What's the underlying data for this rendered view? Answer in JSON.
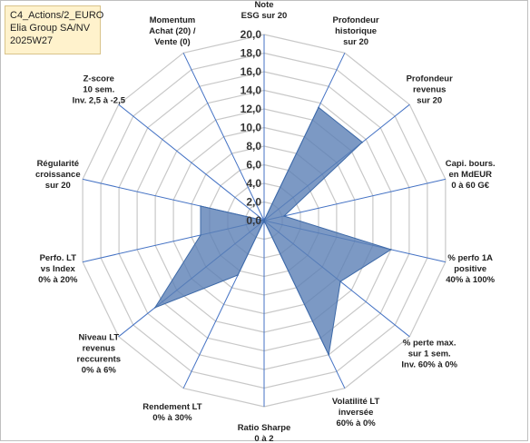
{
  "info": {
    "line1": "C4_Actions/2_EURO",
    "line2": "Elia Group SA/NV",
    "line3": "2025W27",
    "background": "#fff2cc"
  },
  "chart_data": {
    "type": "radar",
    "rlim": [
      0,
      20
    ],
    "ticks": [
      "0,0",
      "2,0",
      "4,0",
      "6,0",
      "8,0",
      "10,0",
      "12,0",
      "14,0",
      "16,0",
      "18,0",
      "20,0"
    ],
    "tick_values": [
      0,
      2,
      4,
      6,
      8,
      10,
      12,
      14,
      16,
      18,
      20
    ],
    "grid": true,
    "colors": {
      "fill": "#5b7fb5",
      "fill_opacity": 0.8,
      "stroke": "#3e6aa8",
      "grid": "#c8c8c8",
      "spoke": "#4472c4"
    },
    "axes": [
      {
        "label": [
          "Note",
          "ESG sur 20"
        ],
        "value": 0
      },
      {
        "label": [
          "Profondeur",
          "historique",
          "sur 20"
        ],
        "value": 13.5
      },
      {
        "label": [
          "Profondeur",
          "revenus",
          "sur 20"
        ],
        "value": 13.5
      },
      {
        "label": [
          "Capi. bours.",
          "en MdEUR",
          "0 à 60 G€"
        ],
        "value": 2.2
      },
      {
        "label": [
          "% perfo 1A",
          "positive",
          "40% à 100%"
        ],
        "value": 14
      },
      {
        "label": [
          "% perte max.",
          "sur 1 sem.",
          "Inv. 60% à 0%"
        ],
        "value": 10.5
      },
      {
        "label": [
          "Volatilité LT",
          "inversée",
          "60% à 0%"
        ],
        "value": 16
      },
      {
        "label": [
          "Ratio Sharpe",
          "0 à 2"
        ],
        "value": 0
      },
      {
        "label": [
          "Rendement LT",
          "0% à 30%"
        ],
        "value": 6.5
      },
      {
        "label": [
          "Niveau LT",
          "revenus",
          "reccurents",
          "0% à 6%"
        ],
        "value": 15
      },
      {
        "label": [
          "Perfo. LT",
          "vs Index",
          "0% à 20%"
        ],
        "value": 7
      },
      {
        "label": [
          "Régularité",
          "croissance",
          "sur 20"
        ],
        "value": 7
      },
      {
        "label": [
          "Z-score",
          "10 sem.",
          "Inv. 2,5 à -2,5"
        ],
        "value": 0
      },
      {
        "label": [
          "Momentum",
          "Achat (20) /",
          "Vente (0)"
        ],
        "value": 0
      }
    ]
  }
}
